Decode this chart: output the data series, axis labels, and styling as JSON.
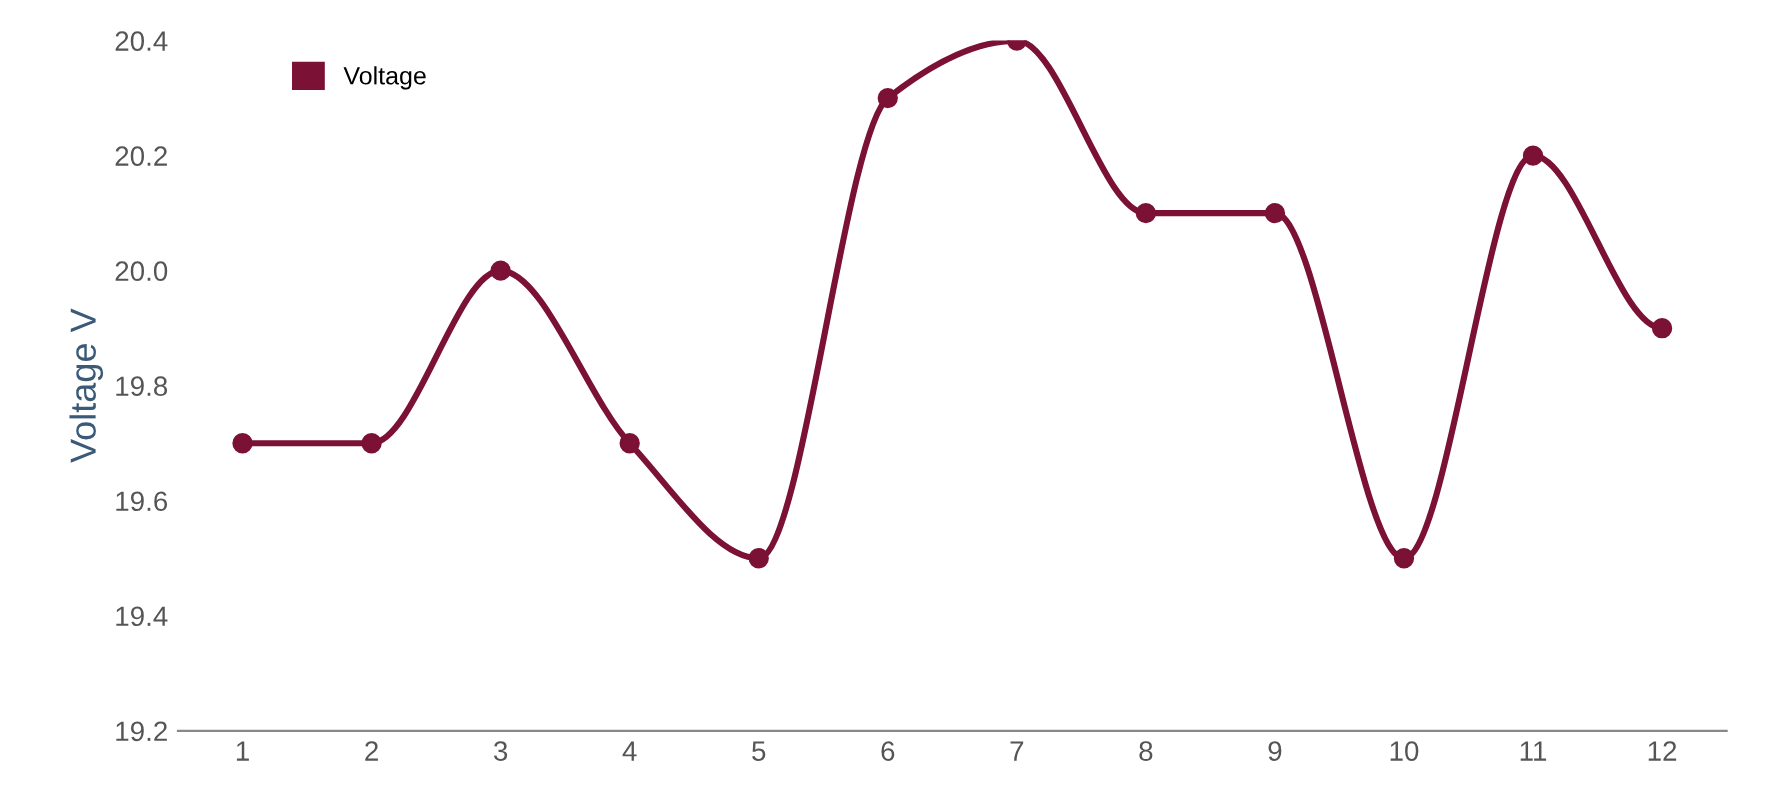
{
  "chart_data": {
    "type": "line",
    "ylabel": "Voltage V",
    "categories": [
      "1",
      "2",
      "3",
      "4",
      "5",
      "6",
      "7",
      "8",
      "9",
      "10",
      "11",
      "12"
    ],
    "series": [
      {
        "name": "Voltage",
        "color": "#7b1134",
        "values": [
          19.7,
          19.7,
          20.0,
          19.7,
          19.5,
          20.3,
          20.4,
          20.1,
          20.1,
          19.5,
          20.2,
          19.9
        ]
      }
    ],
    "ylim": [
      19.2,
      20.4
    ],
    "yticks": [
      19.2,
      19.4,
      19.6,
      19.8,
      {
        "value": 20.0,
        "label": "20.0"
      },
      20.2,
      20.4
    ],
    "grid": false,
    "legend": "top left",
    "marker": "circle",
    "line_style": "solid"
  }
}
